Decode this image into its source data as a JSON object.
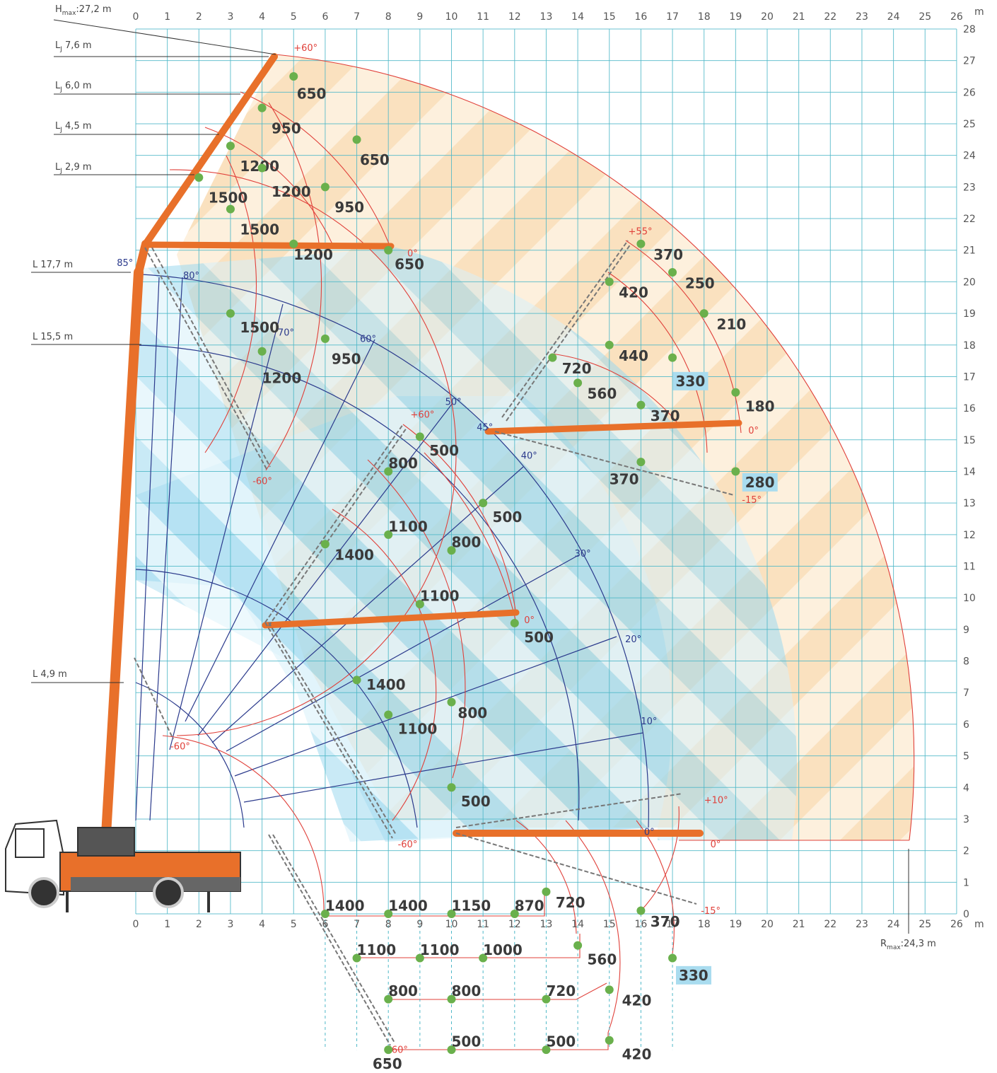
{
  "axis": {
    "unit": "m",
    "x_ticks": [
      "0",
      "1",
      "2",
      "3",
      "4",
      "5",
      "6",
      "7",
      "8",
      "9",
      "10",
      "11",
      "12",
      "13",
      "14",
      "15",
      "16",
      "17",
      "18",
      "19",
      "20",
      "21",
      "22",
      "23",
      "24",
      "25",
      "26"
    ],
    "y_ticks": [
      "0",
      "1",
      "2",
      "3",
      "4",
      "5",
      "6",
      "7",
      "8",
      "9",
      "10",
      "11",
      "12",
      "13",
      "14",
      "15",
      "16",
      "17",
      "18",
      "19",
      "20",
      "21",
      "22",
      "23",
      "24",
      "25",
      "26",
      "27",
      "28"
    ]
  },
  "side_labels": {
    "hmax": "H",
    "hmax_sub": "max",
    "hmax_val": ":27,2 m",
    "lj76": "L",
    "lj76_val": " 7,6 m",
    "lj60": "L",
    "lj60_val": " 6,0 m",
    "lj45": "L",
    "lj45_val": " 4,5 m",
    "lj29": "L",
    "lj29_val": " 2,9 m",
    "jsub": "J",
    "l177": "L 17,7 m",
    "l155": "L 15,5 m",
    "l49": "L 4,9 m",
    "rmax": "R",
    "rmax_sub": "max",
    "rmax_val": ":24,3 m"
  },
  "colors": {
    "grid": "#4fb8c8",
    "boom": "#e8702a",
    "red_line": "#e0403a",
    "blue_line": "#2b3a8c",
    "load_point": "#6ab04c",
    "orange_area": "#f6c88a",
    "blue_area": "#9dd8ee",
    "highlight": "#a9dcef"
  },
  "red_angles": [
    {
      "id": "a60top",
      "text": "+60°",
      "x": 5.0,
      "y": 27.3
    },
    {
      "id": "a0top",
      "text": "0°",
      "x": 8.6,
      "y": 20.8
    },
    {
      "id": "am60a",
      "text": "-60°",
      "x": 3.7,
      "y": 13.6
    },
    {
      "id": "a60mid",
      "text": "+60°",
      "x": 8.7,
      "y": 15.7
    },
    {
      "id": "a55",
      "text": "+55°",
      "x": 15.6,
      "y": 21.5
    },
    {
      "id": "a0r",
      "text": "0°",
      "x": 19.4,
      "y": 15.2
    },
    {
      "id": "am15a",
      "text": "-15°",
      "x": 19.2,
      "y": 13.0
    },
    {
      "id": "a0m",
      "text": "0°",
      "x": 12.3,
      "y": 9.2
    },
    {
      "id": "am60b",
      "text": "-60°",
      "x": 1.1,
      "y": 5.2
    },
    {
      "id": "am60c",
      "text": "-60°",
      "x": 8.3,
      "y": 2.1
    },
    {
      "id": "a10",
      "text": "+10°",
      "x": 18.0,
      "y": 3.5
    },
    {
      "id": "a0b",
      "text": "0°",
      "x": 18.2,
      "y": 2.1
    },
    {
      "id": "am15b",
      "text": "-15°",
      "x": 17.9,
      "y": 0.0
    },
    {
      "id": "am60d",
      "text": "-60°",
      "x": 8.0,
      "y": -4.4
    }
  ],
  "blue_angles": [
    {
      "id": "b85",
      "text": "85°",
      "x": -0.6,
      "y": 20.5
    },
    {
      "id": "b80",
      "text": "80°",
      "x": 1.5,
      "y": 20.1
    },
    {
      "id": "b70",
      "text": "70°",
      "x": 4.5,
      "y": 18.3
    },
    {
      "id": "b60",
      "text": "60°",
      "x": 7.1,
      "y": 18.1
    },
    {
      "id": "b50",
      "text": "50°",
      "x": 9.8,
      "y": 16.1
    },
    {
      "id": "b45",
      "text": "45°",
      "x": 10.8,
      "y": 15.3
    },
    {
      "id": "b40",
      "text": "40°",
      "x": 12.2,
      "y": 14.4
    },
    {
      "id": "b30",
      "text": "30°",
      "x": 13.9,
      "y": 11.3
    },
    {
      "id": "b20",
      "text": "20°",
      "x": 15.5,
      "y": 8.6
    },
    {
      "id": "b10",
      "text": "10°",
      "x": 16.0,
      "y": 6.0
    },
    {
      "id": "b0",
      "text": "0°",
      "x": 16.1,
      "y": 2.5
    }
  ],
  "load_points": [
    {
      "id": "p650a",
      "text": "650",
      "x": 5.0,
      "y": 26.5,
      "lx": 5.1,
      "ly": 25.8
    },
    {
      "id": "p950a",
      "text": "950",
      "x": 4.0,
      "y": 25.5,
      "lx": 4.3,
      "ly": 24.7
    },
    {
      "id": "p650b",
      "text": "650",
      "x": 7.0,
      "y": 24.5,
      "lx": 7.1,
      "ly": 23.7
    },
    {
      "id": "p1200a",
      "text": "1200",
      "x": 3.0,
      "y": 24.3,
      "lx": 3.3,
      "ly": 23.5
    },
    {
      "id": "p1200b",
      "text": "1200",
      "x": 4.0,
      "y": 23.6,
      "lx": 4.3,
      "ly": 22.7
    },
    {
      "id": "p1500a",
      "text": "1500",
      "x": 2.0,
      "y": 23.3,
      "lx": 2.3,
      "ly": 22.5
    },
    {
      "id": "p950b",
      "text": "950",
      "x": 6.0,
      "y": 23.0,
      "lx": 6.3,
      "ly": 22.2
    },
    {
      "id": "p1500b",
      "text": "1500",
      "x": 3.0,
      "y": 22.3,
      "lx": 3.3,
      "ly": 21.5
    },
    {
      "id": "p1200c",
      "text": "1200",
      "x": 5.0,
      "y": 21.2,
      "lx": 5.0,
      "ly": 20.7
    },
    {
      "id": "p650c",
      "text": "650",
      "x": 8.0,
      "y": 21.0,
      "lx": 8.2,
      "ly": 20.4
    },
    {
      "id": "p1500c",
      "text": "1500",
      "x": 3.0,
      "y": 19.0,
      "lx": 3.3,
      "ly": 18.4
    },
    {
      "id": "p950c",
      "text": "950",
      "x": 6.0,
      "y": 18.2,
      "lx": 6.2,
      "ly": 17.4
    },
    {
      "id": "p1200d",
      "text": "1200",
      "x": 4.0,
      "y": 17.8,
      "lx": 4.0,
      "ly": 16.8
    },
    {
      "id": "p370a",
      "text": "370",
      "x": 16.0,
      "y": 21.2,
      "lx": 16.4,
      "ly": 20.7
    },
    {
      "id": "p250",
      "text": "250",
      "x": 17.0,
      "y": 20.3,
      "lx": 17.4,
      "ly": 19.8
    },
    {
      "id": "p420a",
      "text": "420",
      "x": 15.0,
      "y": 20.0,
      "lx": 15.3,
      "ly": 19.5
    },
    {
      "id": "p210",
      "text": "210",
      "x": 18.0,
      "y": 19.0,
      "lx": 18.4,
      "ly": 18.5
    },
    {
      "id": "p440",
      "text": "440",
      "x": 15.0,
      "y": 18.0,
      "lx": 15.3,
      "ly": 17.5
    },
    {
      "id": "p720a",
      "text": "720",
      "x": 13.2,
      "y": 17.6,
      "lx": 13.5,
      "ly": 17.1
    },
    {
      "id": "p330a",
      "text": "330",
      "x": 17.0,
      "y": 17.6,
      "lx": 17.1,
      "ly": 16.7,
      "highlight": true
    },
    {
      "id": "p560a",
      "text": "560",
      "x": 14.0,
      "y": 16.8,
      "lx": 14.3,
      "ly": 16.3
    },
    {
      "id": "p180",
      "text": "180",
      "x": 19.0,
      "y": 16.5,
      "lx": 19.3,
      "ly": 15.9
    },
    {
      "id": "p370b",
      "text": "370",
      "x": 16.0,
      "y": 16.1,
      "lx": 16.3,
      "ly": 15.6
    },
    {
      "id": "p500a",
      "text": "500",
      "x": 9.0,
      "y": 15.1,
      "lx": 9.3,
      "ly": 14.5
    },
    {
      "id": "p800a",
      "text": "800",
      "x": 8.0,
      "y": 14.0,
      "lx": 8.0,
      "ly": 14.1
    },
    {
      "id": "p370c",
      "text": "370",
      "x": 16.0,
      "y": 14.3,
      "lx": 15.0,
      "ly": 13.6
    },
    {
      "id": "p280",
      "text": "280",
      "x": 19.0,
      "y": 14.0,
      "lx": 19.3,
      "ly": 13.5,
      "highlight": true
    },
    {
      "id": "p500b",
      "text": "500",
      "x": 11.0,
      "y": 13.0,
      "lx": 11.3,
      "ly": 12.4
    },
    {
      "id": "p1100a",
      "text": "1100",
      "x": 8.0,
      "y": 12.0,
      "lx": 8.0,
      "ly": 12.1
    },
    {
      "id": "p1400a",
      "text": "1400",
      "x": 6.0,
      "y": 11.7,
      "lx": 6.3,
      "ly": 11.2
    },
    {
      "id": "p800b",
      "text": "800",
      "x": 10.0,
      "y": 11.5,
      "lx": 10.0,
      "ly": 11.6
    },
    {
      "id": "p1100b",
      "text": "1100",
      "x": 9.0,
      "y": 9.8,
      "lx": 9.0,
      "ly": 9.9
    },
    {
      "id": "p500c",
      "text": "500",
      "x": 12.0,
      "y": 9.2,
      "lx": 12.3,
      "ly": 8.6
    },
    {
      "id": "p1400b",
      "text": "1400",
      "x": 7.0,
      "y": 7.4,
      "lx": 7.3,
      "ly": 7.1
    },
    {
      "id": "p800c",
      "text": "800",
      "x": 10.0,
      "y": 6.7,
      "lx": 10.2,
      "ly": 6.2
    },
    {
      "id": "p1100c",
      "text": "1100",
      "x": 8.0,
      "y": 6.3,
      "lx": 8.3,
      "ly": 5.7
    },
    {
      "id": "p500d",
      "text": "500",
      "x": 10.0,
      "y": 4.0,
      "lx": 10.3,
      "ly": 3.4
    },
    {
      "id": "p1400c",
      "text": "1400",
      "x": 6.0,
      "y": 0.0,
      "lx": 6.0,
      "ly": 0.1
    },
    {
      "id": "p1400d",
      "text": "1400",
      "x": 8.0,
      "y": 0.0,
      "lx": 8.0,
      "ly": 0.1
    },
    {
      "id": "p1150",
      "text": "1150",
      "x": 10.0,
      "y": 0.0,
      "lx": 10.0,
      "ly": 0.1
    },
    {
      "id": "p870",
      "text": "870",
      "x": 12.0,
      "y": 0.0,
      "lx": 12.0,
      "ly": 0.1
    },
    {
      "id": "p720b",
      "text": "720",
      "x": 13.0,
      "y": 0.7,
      "lx": 13.3,
      "ly": 0.2
    },
    {
      "id": "p370d",
      "text": "370",
      "x": 16.0,
      "y": 0.1,
      "lx": 16.3,
      "ly": -0.4
    },
    {
      "id": "p1100d",
      "text": "1100",
      "x": 7.0,
      "y": -1.4,
      "lx": 7.0,
      "ly": -1.3
    },
    {
      "id": "p1100e",
      "text": "1100",
      "x": 9.0,
      "y": -1.4,
      "lx": 9.0,
      "ly": -1.3
    },
    {
      "id": "p1000",
      "text": "1000",
      "x": 11.0,
      "y": -1.4,
      "lx": 11.0,
      "ly": -1.3
    },
    {
      "id": "p560b",
      "text": "560",
      "x": 14.0,
      "y": -1.0,
      "lx": 14.3,
      "ly": -1.6
    },
    {
      "id": "p330b",
      "text": "330",
      "x": 17.0,
      "y": -1.4,
      "lx": 17.2,
      "ly": -2.1,
      "highlight": true
    },
    {
      "id": "p800d",
      "text": "800",
      "x": 8.0,
      "y": -2.7,
      "lx": 8.0,
      "ly": -2.6
    },
    {
      "id": "p800e",
      "text": "800",
      "x": 10.0,
      "y": -2.7,
      "lx": 10.0,
      "ly": -2.6
    },
    {
      "id": "p720c",
      "text": "720",
      "x": 13.0,
      "y": -2.7,
      "lx": 13.0,
      "ly": -2.6
    },
    {
      "id": "p420b",
      "text": "420",
      "x": 15.0,
      "y": -2.4,
      "lx": 15.4,
      "ly": -2.9
    },
    {
      "id": "p500e",
      "text": "500",
      "x": 10.0,
      "y": -4.3,
      "lx": 10.0,
      "ly": -4.2
    },
    {
      "id": "p500f",
      "text": "500",
      "x": 13.0,
      "y": -4.3,
      "lx": 13.0,
      "ly": -4.2
    },
    {
      "id": "p420c",
      "text": "420",
      "x": 15.0,
      "y": -4.0,
      "lx": 15.4,
      "ly": -4.6
    },
    {
      "id": "p650d",
      "text": "650",
      "x": 8.0,
      "y": -4.3,
      "lx": 7.5,
      "ly": -4.9
    }
  ]
}
